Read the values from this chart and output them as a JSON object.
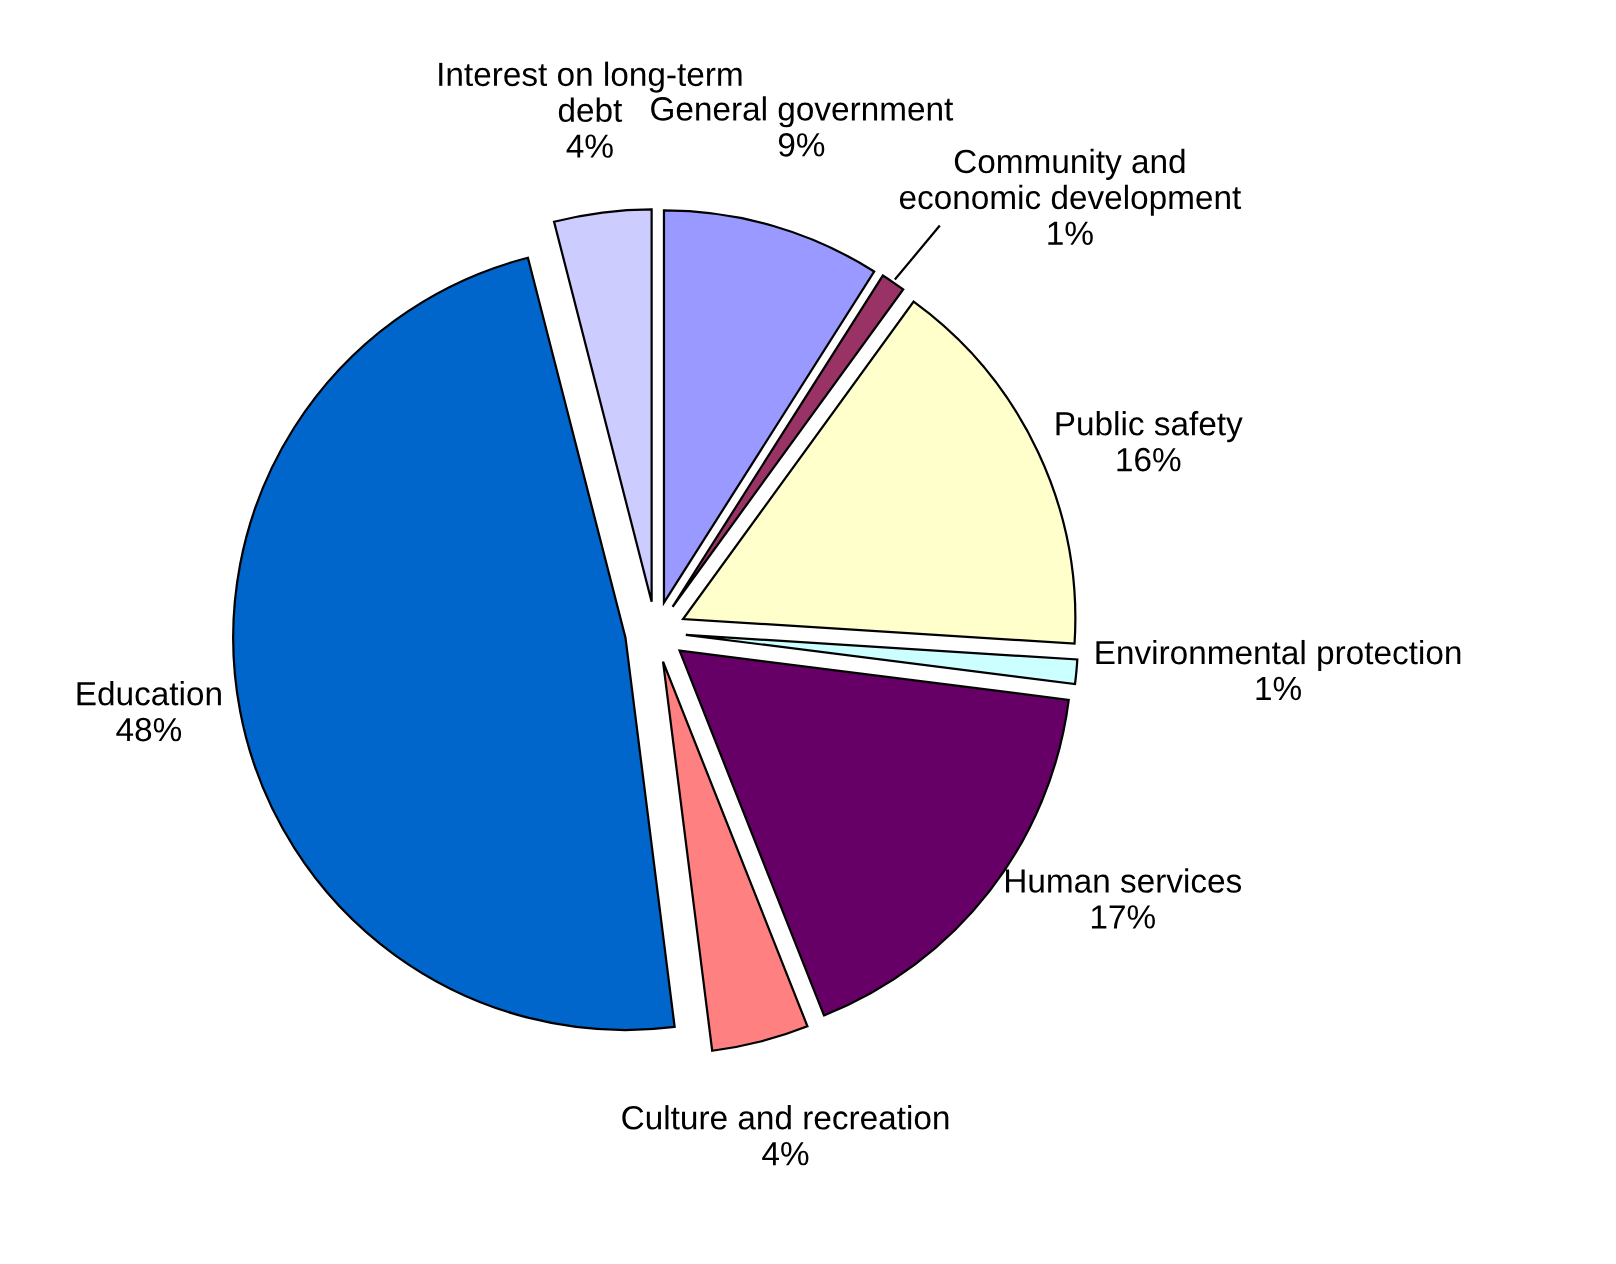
{
  "chart_data": {
    "type": "pie",
    "categories": [
      "General government",
      "Community and\neconomic development",
      "Public safety",
      "Environmental protection",
      "Human services",
      "Culture and recreation",
      "Education",
      "Interest on long-term\ndebt"
    ],
    "values": [
      9,
      1,
      16,
      1,
      17,
      4,
      48,
      4
    ],
    "value_labels": [
      "9%",
      "1%",
      "16%",
      "1%",
      "17%",
      "4%",
      "48%",
      "4%"
    ],
    "colors": [
      "#9999ff",
      "#993366",
      "#ffffcc",
      "#ccffff",
      "#660066",
      "#ff8080",
      "#0066cc",
      "#ccccff"
    ]
  }
}
